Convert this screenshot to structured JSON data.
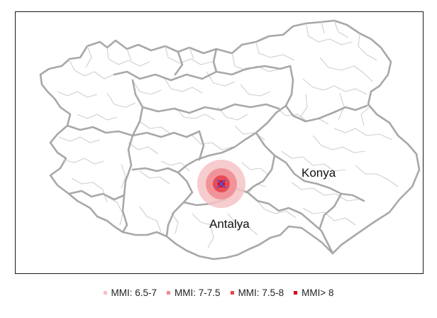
{
  "map": {
    "labels": {
      "konya": "Konya",
      "antalya": "Antalya"
    },
    "epicenter_marker": "x-marker",
    "colors": {
      "border_major": "#a8a8a8",
      "border_minor": "#cfcfcf",
      "epicenter": "#6a4fc0"
    }
  },
  "legend": {
    "items": [
      {
        "label": "MMI: 6.5-7",
        "color": "#f6c3c6"
      },
      {
        "label": "MMI: 7-7.5",
        "color": "#f08a90"
      },
      {
        "label": "MMI: 7.5-8",
        "color": "#e8424c"
      },
      {
        "label": "MMI> 8",
        "color": "#d90012"
      }
    ]
  }
}
